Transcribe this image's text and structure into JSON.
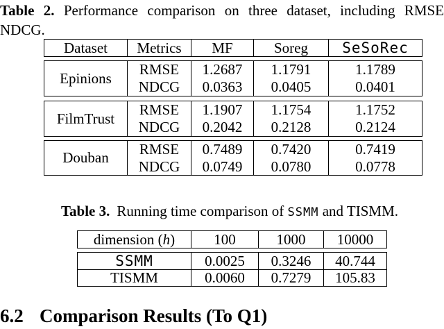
{
  "table2_caption": {
    "label": "Table 2.",
    "line1_rest": "Performance comparison on three dataset, including RMSE",
    "line2": "NDCG."
  },
  "table2": {
    "headers": [
      "Dataset",
      "Metrics",
      "MF",
      "Soreg",
      "SeSoRec"
    ],
    "groups": [
      {
        "dataset": "Epinions",
        "metrics": [
          "RMSE",
          "NDCG"
        ],
        "mf": [
          "1.2687",
          "0.0363"
        ],
        "soreg": [
          "1.1791",
          "0.0405"
        ],
        "sesorec": [
          "1.1789",
          "0.0401"
        ]
      },
      {
        "dataset": "FilmTrust",
        "metrics": [
          "RMSE",
          "NDCG"
        ],
        "mf": [
          "1.1907",
          "0.2042"
        ],
        "soreg": [
          "1.1754",
          "0.2128"
        ],
        "sesorec": [
          "1.1752",
          "0.2124"
        ]
      },
      {
        "dataset": "Douban",
        "metrics": [
          "RMSE",
          "NDCG"
        ],
        "mf": [
          "0.7489",
          "0.0749"
        ],
        "soreg": [
          "0.7420",
          "0.0780"
        ],
        "sesorec": [
          "0.7419",
          "0.0778"
        ]
      }
    ]
  },
  "table3_caption": {
    "label": "Table 3.",
    "before": "Running time comparison of ",
    "ssmm": "SSMM",
    "middle": " and ",
    "tismm": "TISMM."
  },
  "table3": {
    "header": {
      "dim_pre": "dimension (",
      "dim_h": "h",
      "dim_post": ")",
      "cols": [
        "100",
        "1000",
        "10000"
      ]
    },
    "rows": [
      {
        "name": "SSMM",
        "values": [
          "0.0025",
          "0.3246",
          "40.744"
        ]
      },
      {
        "name": "TISMM",
        "values": [
          "0.0060",
          "0.7279",
          "105.83"
        ]
      }
    ]
  },
  "section_heading": {
    "number": "6.2",
    "title": "Comparison Results (To Q1)"
  }
}
